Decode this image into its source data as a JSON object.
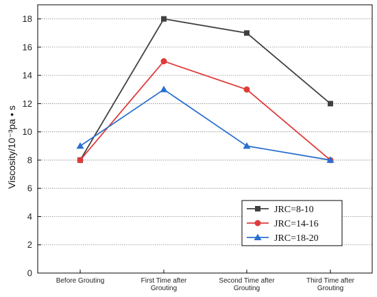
{
  "chart_data": {
    "type": "line",
    "categories": [
      [
        "Before Grouting"
      ],
      [
        "First Time after",
        "Grouting"
      ],
      [
        "Second Time after",
        "Grouting"
      ],
      [
        "Third Time after",
        "Grouting"
      ]
    ],
    "ylabel": "Viscosity/10⁻³pa • s",
    "ylim": [
      0,
      19
    ],
    "yticks": [
      0,
      2,
      4,
      6,
      8,
      10,
      12,
      14,
      16,
      18
    ],
    "grid": "horizontal-dotted",
    "legend_position": "bottom-right",
    "series": [
      {
        "name": "JRC=8-10",
        "color": "#404040",
        "marker": "square",
        "values": [
          8,
          18,
          17,
          12
        ]
      },
      {
        "name": "JRC=14-16",
        "color": "#e03a3a",
        "marker": "circle",
        "values": [
          8,
          15,
          13,
          8
        ]
      },
      {
        "name": "JRC=18-20",
        "color": "#2a6fd0",
        "marker": "triangle",
        "values": [
          9,
          13,
          9,
          8
        ]
      }
    ]
  }
}
